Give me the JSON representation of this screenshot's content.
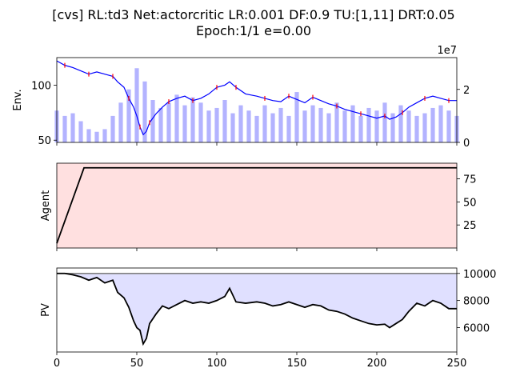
{
  "figure": {
    "title_line1": "[cvs] RL:td3 Net:actorcritic LR:0.001 DF:0.9 TU:[1,11] DRT:0.05",
    "title_line2": "Epoch:1/1 e=0.00"
  },
  "chart_data": [
    {
      "type": "line",
      "name": "env",
      "ylabel": "Env.",
      "xlim": [
        0,
        250
      ],
      "ylim": [
        48,
        125
      ],
      "y_ticks": [
        "50",
        "100"
      ],
      "x_ticks": [
        "0",
        "50",
        "100",
        "150",
        "200",
        "250"
      ],
      "x_tick_labels_visible": false,
      "grid": false,
      "price_line_color": "#0000ff",
      "action_marker_color": "#ff0000",
      "price_x": [
        0,
        5,
        10,
        15,
        20,
        25,
        30,
        35,
        38,
        42,
        45,
        48,
        50,
        52,
        54,
        56,
        58,
        62,
        66,
        70,
        75,
        80,
        85,
        90,
        95,
        100,
        105,
        108,
        112,
        118,
        125,
        130,
        135,
        140,
        145,
        150,
        155,
        160,
        165,
        170,
        175,
        180,
        185,
        190,
        195,
        200,
        205,
        208,
        212,
        216,
        220,
        225,
        230,
        235,
        240,
        245,
        250
      ],
      "price_y": [
        122,
        118,
        116,
        113,
        110,
        112,
        110,
        108,
        103,
        98,
        88,
        80,
        72,
        62,
        55,
        58,
        66,
        74,
        80,
        85,
        88,
        90,
        86,
        88,
        92,
        98,
        100,
        103,
        98,
        92,
        90,
        88,
        86,
        85,
        90,
        87,
        84,
        89,
        86,
        83,
        81,
        78,
        76,
        74,
        72,
        70,
        72,
        69,
        71,
        75,
        80,
        84,
        88,
        90,
        88,
        86,
        86
      ],
      "y2_axis": {
        "ylim": [
          0,
          3.2
        ],
        "ticks": [
          "0",
          "2"
        ],
        "scale_label": "1e7",
        "bar_color": "#b3b3ff",
        "bar_x": [
          0,
          5,
          10,
          15,
          20,
          25,
          30,
          35,
          40,
          45,
          50,
          55,
          60,
          65,
          70,
          75,
          80,
          85,
          90,
          95,
          100,
          105,
          110,
          115,
          120,
          125,
          130,
          135,
          140,
          145,
          150,
          155,
          160,
          165,
          170,
          175,
          180,
          185,
          190,
          195,
          200,
          205,
          210,
          215,
          220,
          225,
          230,
          235,
          240,
          245,
          250
        ],
        "bar_values": [
          1.2,
          1.0,
          1.1,
          0.8,
          0.5,
          0.4,
          0.5,
          1.0,
          1.5,
          2.0,
          2.8,
          2.3,
          1.6,
          1.3,
          1.5,
          1.8,
          1.4,
          1.7,
          1.5,
          1.2,
          1.3,
          1.6,
          1.1,
          1.4,
          1.2,
          1.0,
          1.4,
          1.1,
          1.3,
          1.0,
          1.9,
          1.2,
          1.4,
          1.3,
          1.1,
          1.5,
          1.2,
          1.4,
          1.0,
          1.3,
          1.2,
          1.5,
          1.1,
          1.4,
          1.2,
          1.0,
          1.1,
          1.3,
          1.4,
          1.2,
          1.0
        ]
      }
    },
    {
      "type": "area",
      "name": "agent",
      "ylabel": "Agent",
      "xlim": [
        0,
        250
      ],
      "ylim": [
        0,
        92
      ],
      "y_ticks": [
        "25",
        "50",
        "75"
      ],
      "x_ticks": [
        "0",
        "50",
        "100",
        "150",
        "200",
        "250"
      ],
      "x_tick_labels_visible": false,
      "grid": false,
      "fill_color": "#ffe0e0",
      "line_color": "#000000",
      "x": [
        0,
        17,
        250
      ],
      "y": [
        5,
        87,
        87
      ]
    },
    {
      "type": "line",
      "name": "pv",
      "ylabel": "PV",
      "xlim": [
        0,
        250
      ],
      "ylim": [
        4200,
        10400
      ],
      "y_ticks": [
        "6000",
        "8000",
        "10000"
      ],
      "x_ticks": [
        "0",
        "50",
        "100",
        "150",
        "200",
        "250"
      ],
      "x_tick_labels_visible": true,
      "grid": false,
      "baseline": 10000,
      "fill_color": "#e0e0ff",
      "baseline_color": "#808080",
      "line_color": "#000000",
      "x": [
        0,
        5,
        10,
        15,
        20,
        25,
        30,
        35,
        38,
        42,
        45,
        48,
        50,
        52,
        54,
        56,
        58,
        62,
        66,
        70,
        75,
        80,
        85,
        90,
        95,
        100,
        105,
        108,
        112,
        118,
        125,
        130,
        135,
        140,
        145,
        150,
        155,
        160,
        165,
        170,
        175,
        180,
        185,
        190,
        195,
        200,
        205,
        208,
        212,
        216,
        220,
        225,
        230,
        235,
        240,
        245,
        250
      ],
      "y": [
        10000,
        10000,
        9900,
        9750,
        9500,
        9700,
        9300,
        9500,
        8600,
        8200,
        7500,
        6500,
        6000,
        5800,
        4800,
        5200,
        6300,
        7000,
        7600,
        7400,
        7700,
        8000,
        7800,
        7900,
        7800,
        8000,
        8300,
        8900,
        7900,
        7800,
        7900,
        7800,
        7600,
        7700,
        7900,
        7700,
        7500,
        7700,
        7600,
        7300,
        7200,
        7000,
        6700,
        6500,
        6300,
        6200,
        6250,
        6000,
        6300,
        6600,
        7200,
        7800,
        7600,
        8000,
        7800,
        7400,
        7400
      ]
    }
  ]
}
